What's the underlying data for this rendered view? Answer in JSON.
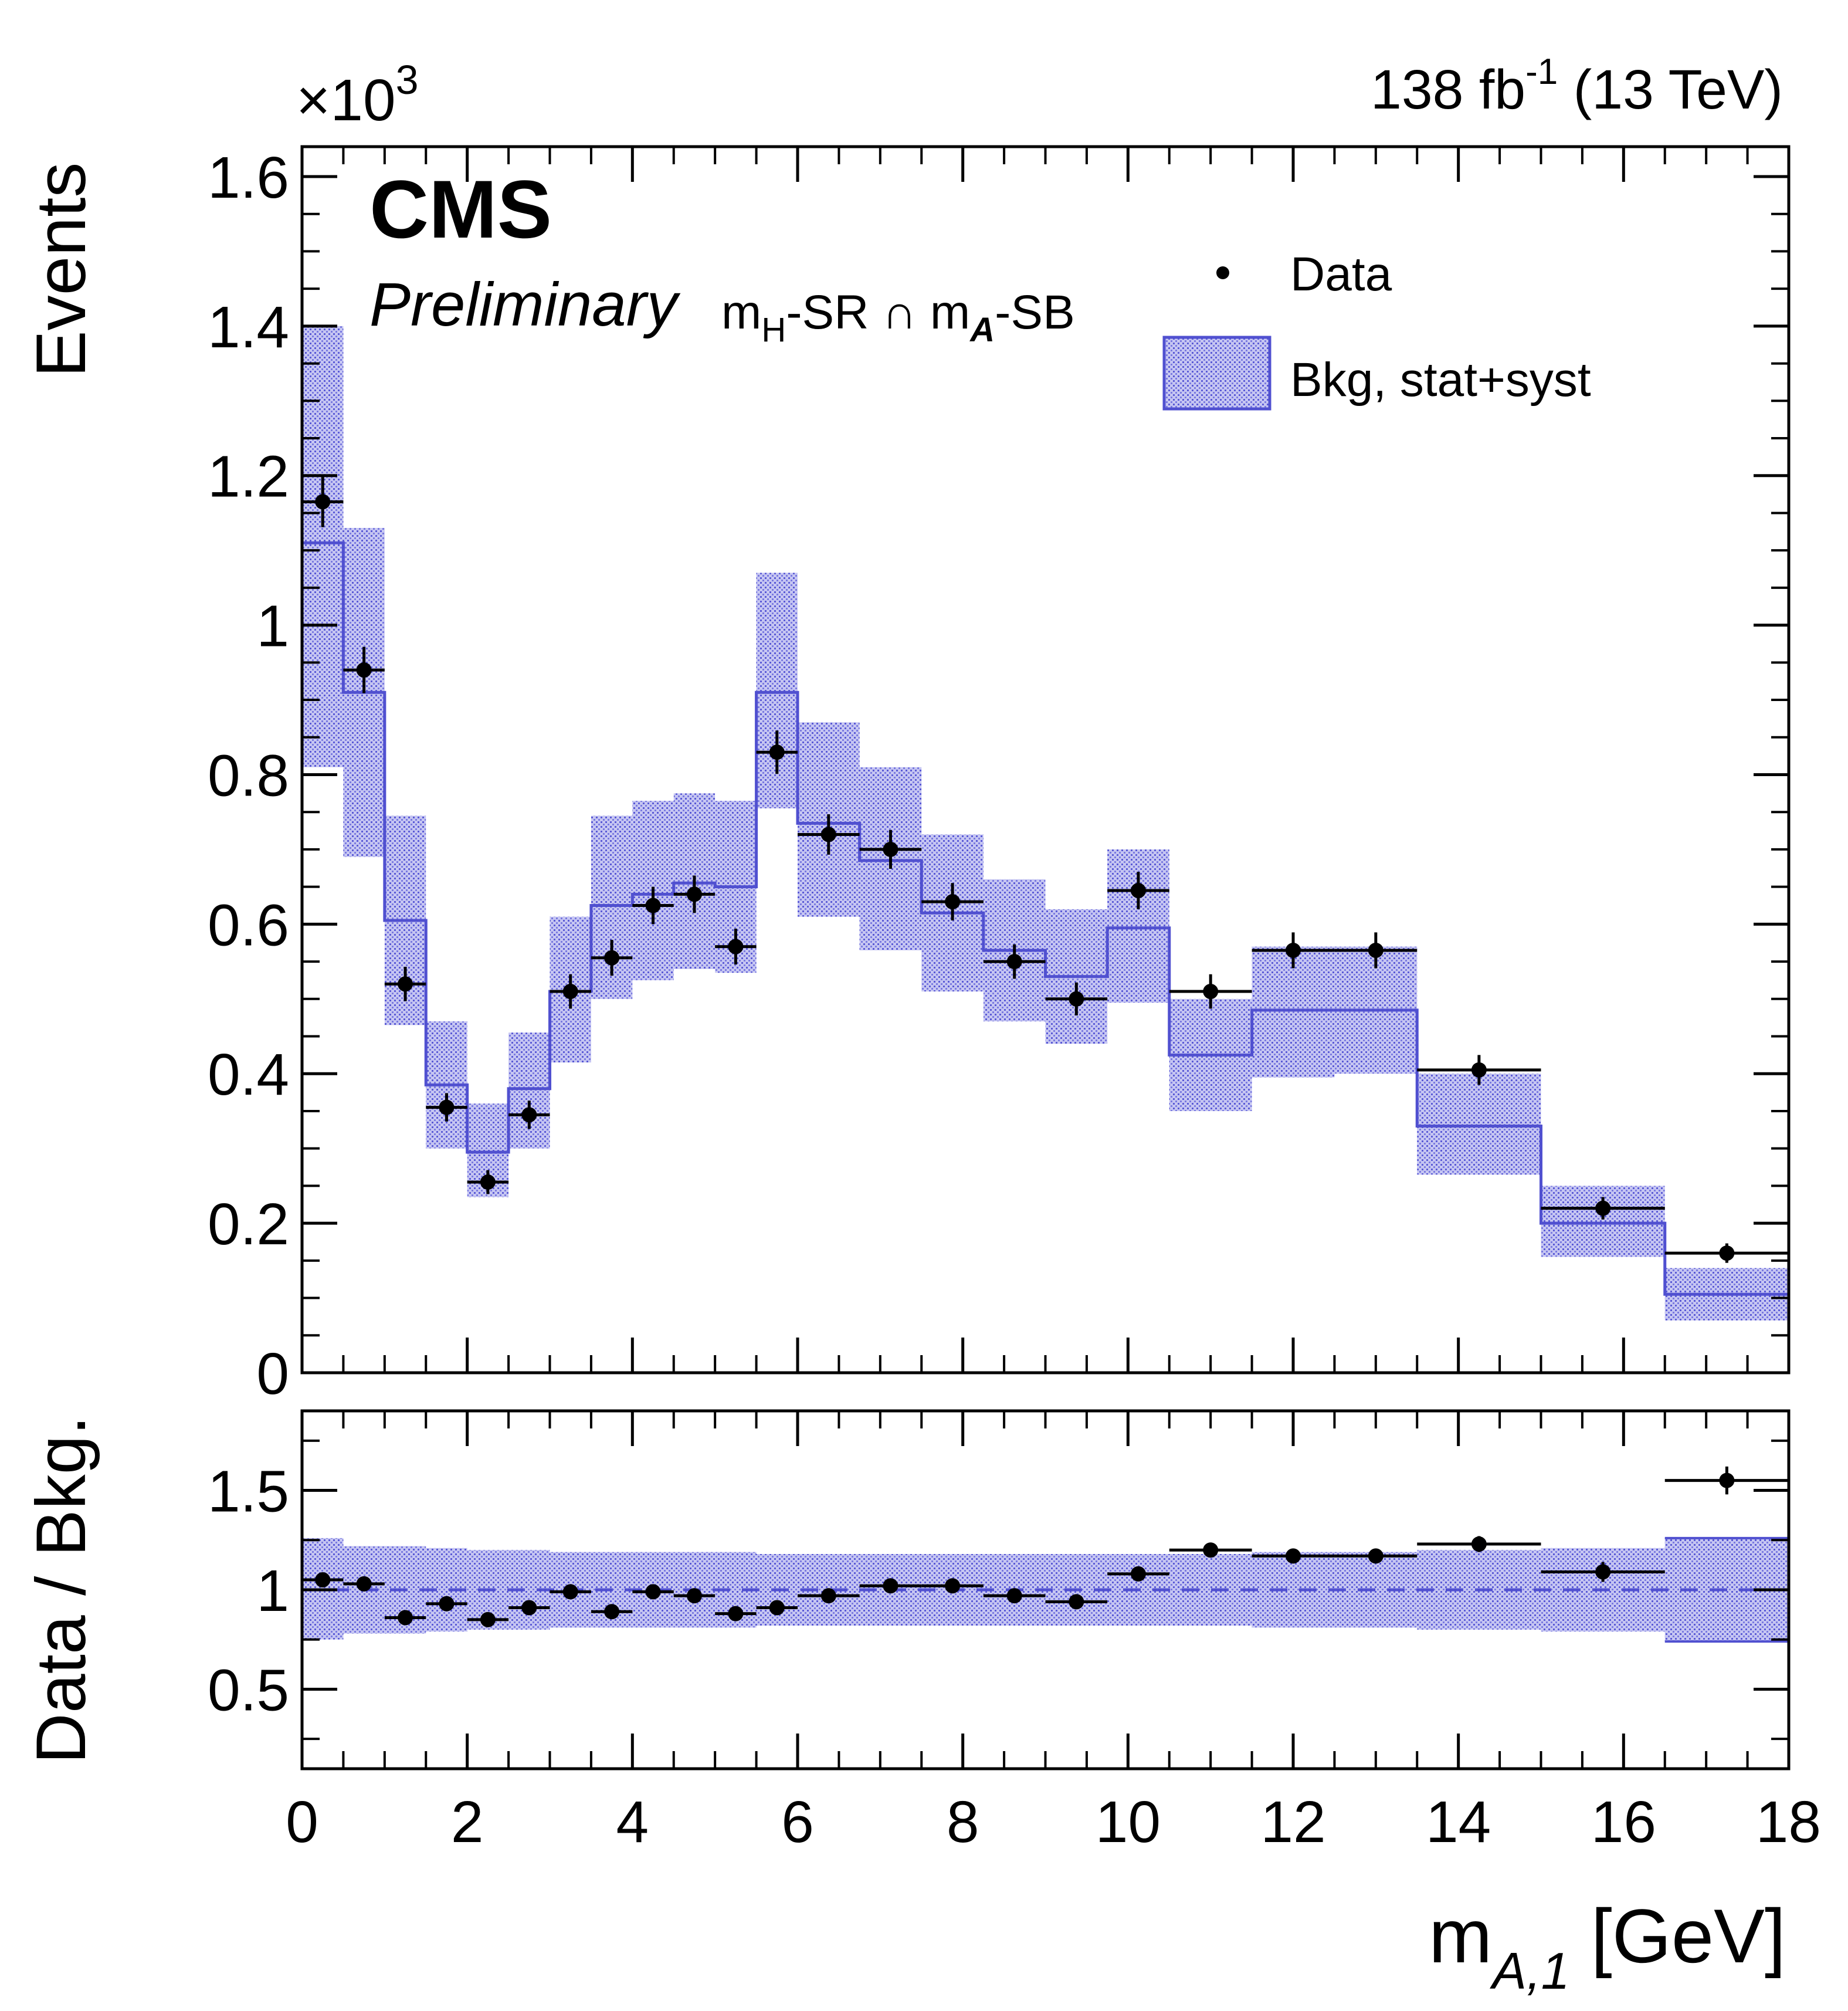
{
  "header": {
    "lumi_main": "138 fb",
    "lumi_sup": "-1",
    "lumi_energy": " (13 TeV)",
    "exponent_base": "×10",
    "exponent_power": "3"
  },
  "labels": {
    "cms": "CMS",
    "preliminary": "Preliminary",
    "region_m1": "m",
    "region_sub1": "H",
    "region_mid": "-SR ∩ m",
    "region_sub2": "A",
    "region_end": "-SB"
  },
  "legend": {
    "data": "Data",
    "bkg": "Bkg, stat+syst"
  },
  "colors": {
    "band_fill": "#9a9ae6",
    "band_line": "#5050d0",
    "data": "#000000"
  },
  "chart_data": [
    {
      "type": "histogram",
      "panel": "main",
      "ylabel": "Events",
      "y_scale_note": "×10^3",
      "xlim": [
        0,
        18
      ],
      "ylim": [
        0,
        1.64
      ],
      "yticks": [
        "0",
        "0.2",
        "0.4",
        "0.6",
        "0.8",
        "1",
        "1.2",
        "1.4",
        "1.6"
      ],
      "ytick_values": [
        0,
        0.2,
        0.4,
        0.6,
        0.8,
        1.0,
        1.2,
        1.4,
        1.6
      ],
      "bin_edges": [
        0,
        0.5,
        1,
        1.5,
        2,
        2.5,
        3,
        3.5,
        4,
        4.5,
        5,
        5.5,
        6,
        6.75,
        7.5,
        8.25,
        9,
        9.75,
        10.5,
        11.5,
        12.5,
        13.5,
        15,
        16.5,
        18
      ],
      "series": [
        {
          "name": "Bkg, stat+syst",
          "values": [
            1.11,
            0.91,
            0.605,
            0.385,
            0.295,
            0.38,
            0.51,
            0.625,
            0.64,
            0.655,
            0.65,
            0.91,
            0.735,
            0.685,
            0.615,
            0.565,
            0.53,
            0.595,
            0.425,
            0.485,
            0.485,
            0.33,
            0.2,
            0.105
          ],
          "unc_low": [
            0.81,
            0.69,
            0.465,
            0.3,
            0.235,
            0.3,
            0.415,
            0.5,
            0.525,
            0.54,
            0.535,
            0.755,
            0.61,
            0.565,
            0.51,
            0.47,
            0.44,
            0.495,
            0.35,
            0.395,
            0.4,
            0.265,
            0.155,
            0.07
          ],
          "unc_high": [
            1.4,
            1.13,
            0.745,
            0.47,
            0.36,
            0.455,
            0.61,
            0.745,
            0.765,
            0.775,
            0.765,
            1.07,
            0.87,
            0.81,
            0.72,
            0.66,
            0.62,
            0.7,
            0.5,
            0.57,
            0.57,
            0.4,
            0.25,
            0.14
          ]
        },
        {
          "name": "Data",
          "x": [
            0.25,
            0.75,
            1.25,
            1.75,
            2.25,
            2.75,
            3.25,
            3.75,
            4.25,
            4.75,
            5.25,
            5.75,
            6.375,
            7.125,
            7.875,
            8.625,
            9.375,
            10.125,
            11.0,
            12.0,
            13.0,
            14.25,
            15.75,
            17.25
          ],
          "xerr": [
            0.25,
            0.25,
            0.25,
            0.25,
            0.25,
            0.25,
            0.25,
            0.25,
            0.25,
            0.25,
            0.25,
            0.25,
            0.375,
            0.375,
            0.375,
            0.375,
            0.375,
            0.375,
            0.5,
            0.5,
            0.5,
            0.75,
            0.75,
            0.75
          ],
          "values": [
            1.165,
            0.94,
            0.52,
            0.355,
            0.255,
            0.345,
            0.51,
            0.555,
            0.625,
            0.64,
            0.57,
            0.83,
            0.72,
            0.7,
            0.63,
            0.55,
            0.5,
            0.645,
            0.51,
            0.565,
            0.565,
            0.405,
            0.22,
            0.16
          ],
          "yerr": [
            0.034,
            0.031,
            0.023,
            0.019,
            0.016,
            0.019,
            0.023,
            0.024,
            0.025,
            0.025,
            0.024,
            0.029,
            0.027,
            0.026,
            0.025,
            0.023,
            0.022,
            0.025,
            0.023,
            0.024,
            0.024,
            0.02,
            0.015,
            0.013
          ]
        }
      ]
    },
    {
      "type": "ratio",
      "panel": "ratio",
      "ylabel": "Data / Bkg.",
      "xlabel_main": "m",
      "xlabel_sub": "A,1",
      "xlabel_unit": " [GeV]",
      "xlim": [
        0,
        18
      ],
      "ylim": [
        0.1,
        1.9
      ],
      "xticks": [
        "0",
        "2",
        "4",
        "6",
        "8",
        "10",
        "12",
        "14",
        "16",
        "18"
      ],
      "xtick_values": [
        0,
        2,
        4,
        6,
        8,
        10,
        12,
        14,
        16,
        18
      ],
      "yticks": [
        "0.5",
        "1",
        "1.5"
      ],
      "ytick_values": [
        0.5,
        1.0,
        1.5
      ],
      "reference_line": 1.0,
      "series": [
        {
          "name": "Bkg unc.",
          "unc_low": [
            0.75,
            0.78,
            0.78,
            0.79,
            0.8,
            0.8,
            0.81,
            0.81,
            0.81,
            0.81,
            0.81,
            0.82,
            0.82,
            0.82,
            0.82,
            0.82,
            0.82,
            0.82,
            0.82,
            0.81,
            0.81,
            0.8,
            0.79,
            0.74
          ],
          "unc_high": [
            1.26,
            1.22,
            1.22,
            1.21,
            1.2,
            1.2,
            1.19,
            1.19,
            1.19,
            1.19,
            1.19,
            1.18,
            1.18,
            1.18,
            1.18,
            1.18,
            1.18,
            1.18,
            1.18,
            1.19,
            1.19,
            1.2,
            1.21,
            1.26
          ]
        },
        {
          "name": "Data/Bkg",
          "values": [
            1.05,
            1.03,
            0.86,
            0.93,
            0.85,
            0.91,
            0.99,
            0.89,
            0.99,
            0.97,
            0.88,
            0.91,
            0.97,
            1.02,
            1.02,
            0.97,
            0.94,
            1.08,
            1.2,
            1.17,
            1.17,
            1.23,
            1.09,
            1.55
          ],
          "yerr": [
            0.03,
            0.03,
            0.03,
            0.03,
            0.03,
            0.03,
            0.03,
            0.03,
            0.03,
            0.03,
            0.03,
            0.03,
            0.03,
            0.03,
            0.03,
            0.03,
            0.03,
            0.03,
            0.03,
            0.03,
            0.03,
            0.04,
            0.05,
            0.07
          ]
        }
      ]
    }
  ]
}
